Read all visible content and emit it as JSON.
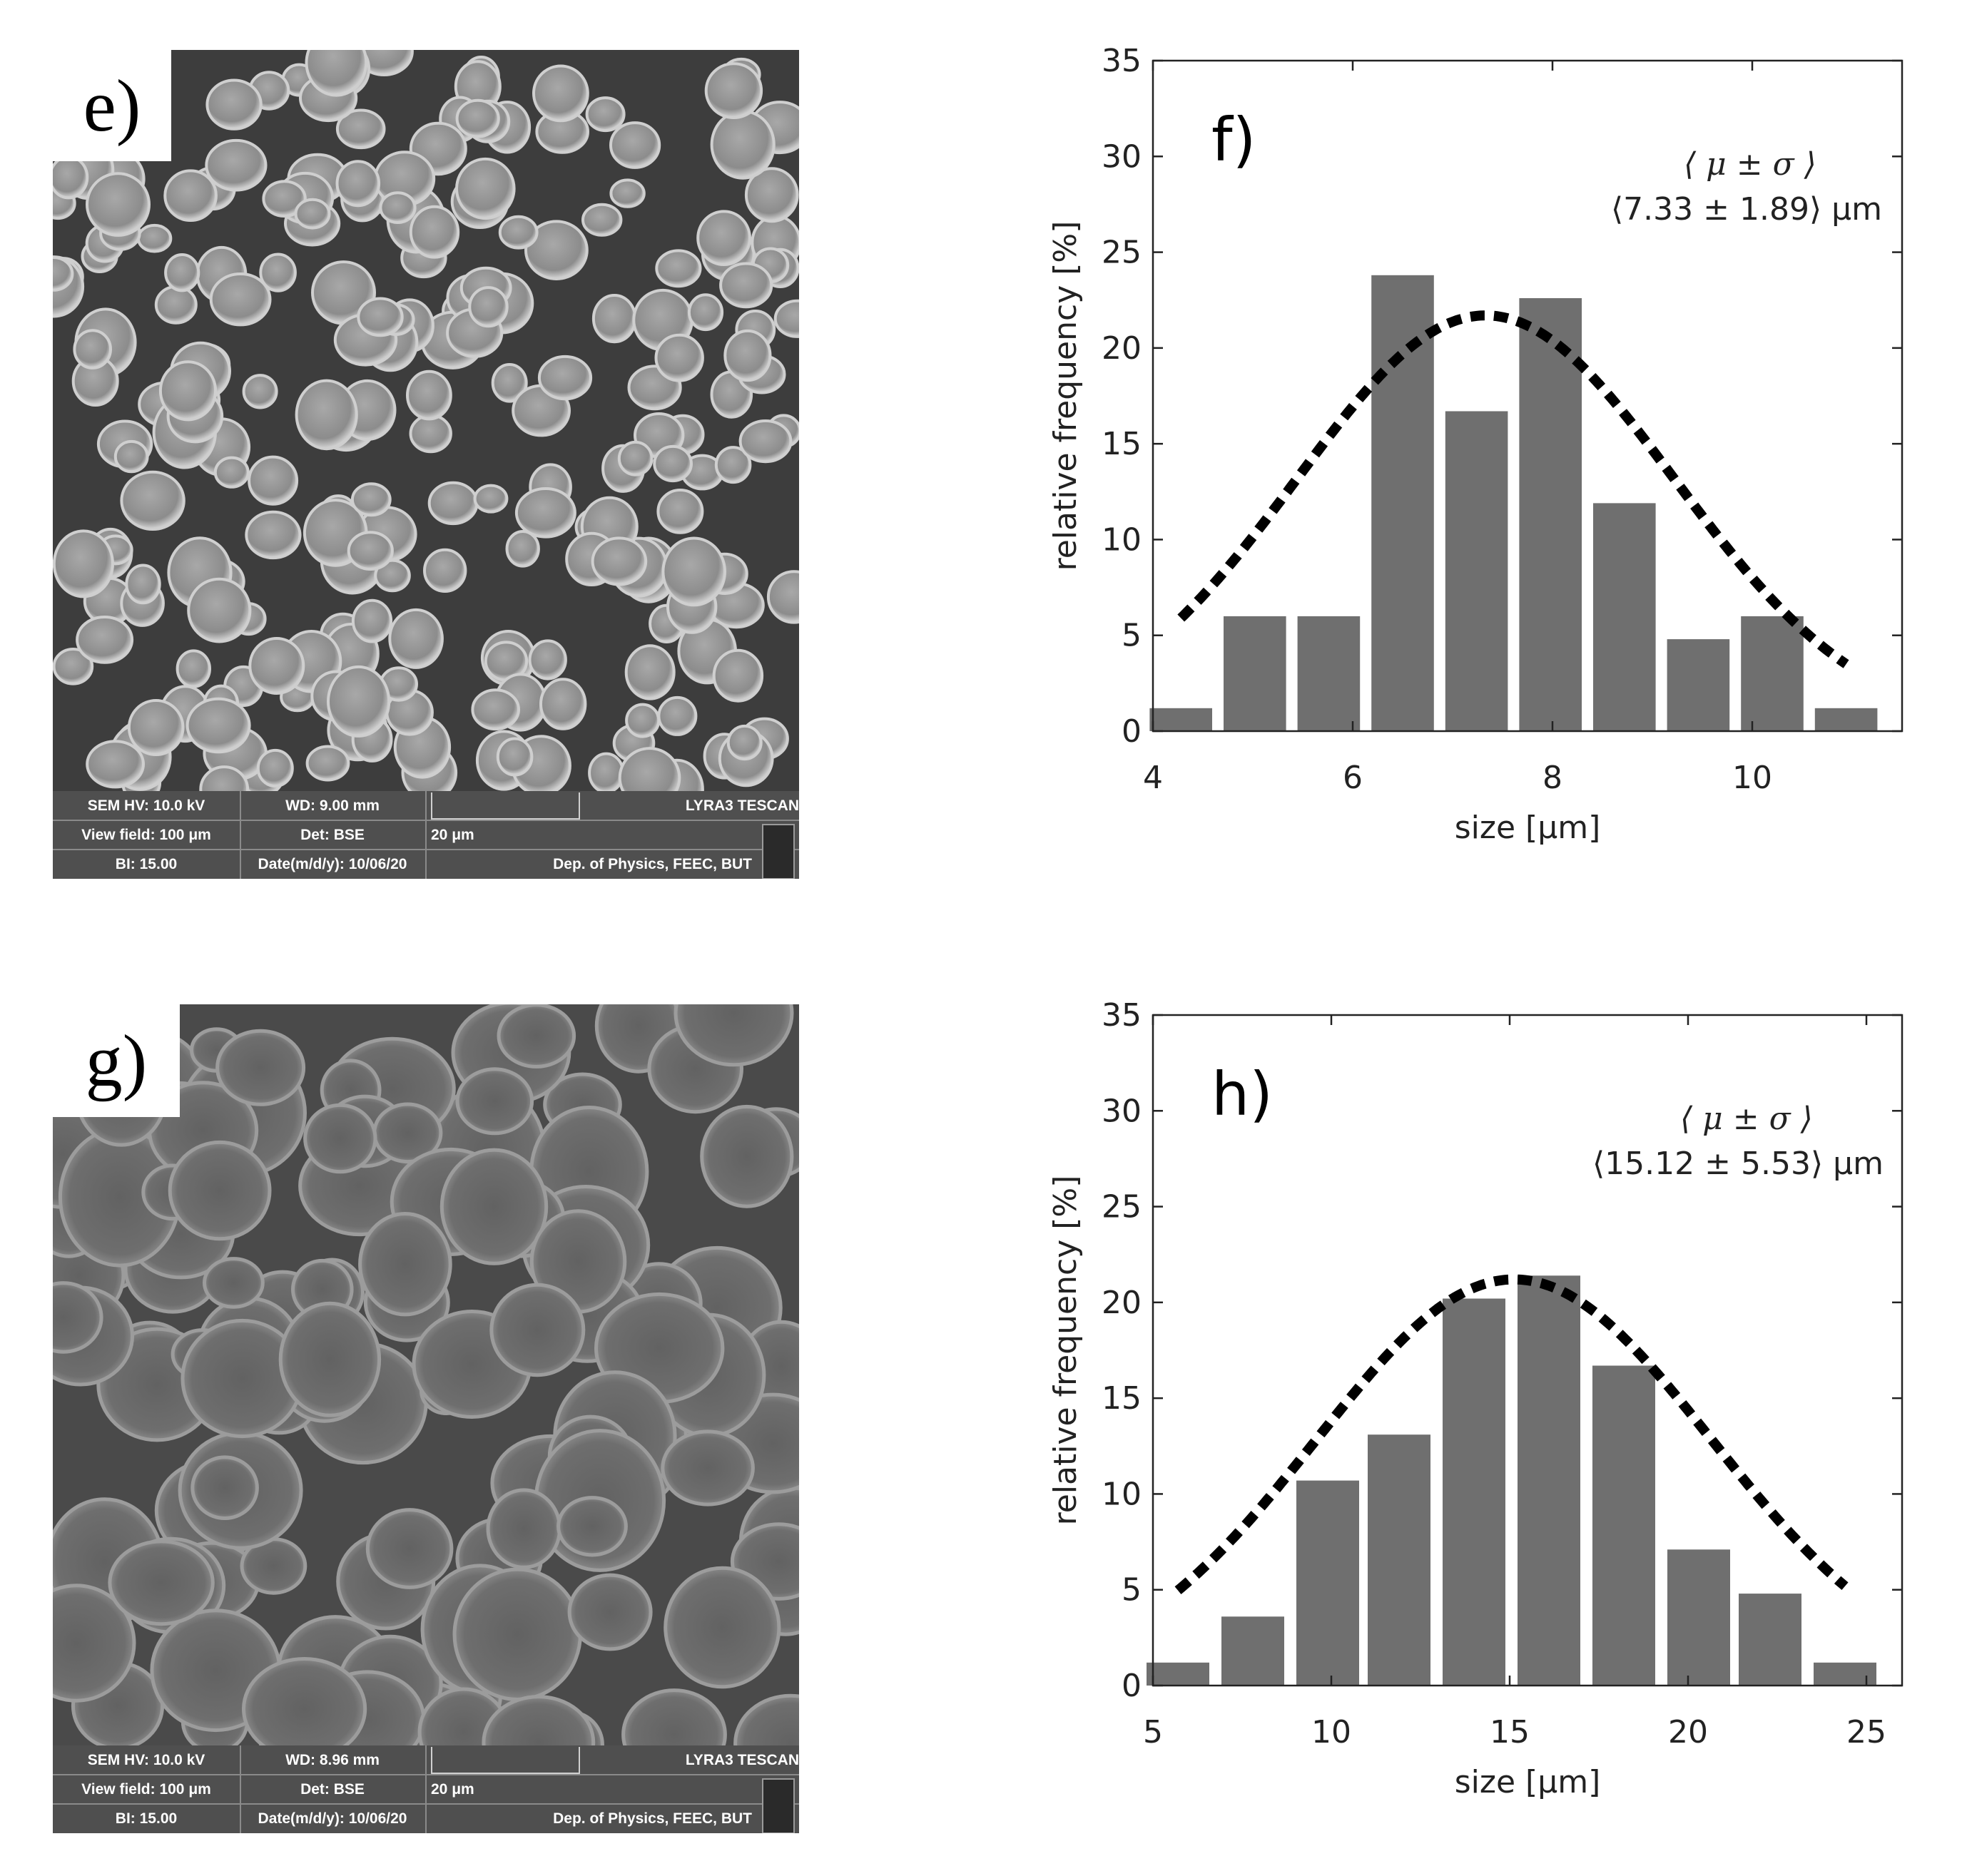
{
  "panels": {
    "e": {
      "label": "e)",
      "scale_label": "20 μm",
      "info": {
        "sem_hv": "SEM HV: 10.0 kV",
        "wd": "WD: 9.00 mm",
        "maker": "LYRA3 TESCAN",
        "view_field": "View field: 100 μm",
        "det": "Det: BSE",
        "bi": "BI: 15.00",
        "date": "Date(m/d/y): 10/06/20",
        "dept": "Dep. of Physics, FEEC, BUT"
      }
    },
    "g": {
      "label": "g)",
      "scale_label": "20 μm",
      "info": {
        "sem_hv": "SEM HV: 10.0 kV",
        "wd": "WD: 8.96 mm",
        "maker": "LYRA3 TESCAN",
        "view_field": "View field: 100 μm",
        "det": "Det: BSE",
        "bi": "BI: 15.00",
        "date": "Date(m/d/y): 10/06/20",
        "dept": "Dep. of Physics, FEEC, BUT"
      }
    }
  },
  "colors": {
    "bar": "#6f6f6f",
    "fit": "#000000",
    "axis": "#222222"
  },
  "chart_data": [
    {
      "id": "f",
      "type": "bar",
      "panel_label": "f)",
      "xlabel": "size [μm]",
      "ylabel": "relative frequency [%]",
      "xlim": [
        4,
        11.5
      ],
      "ylim": [
        0,
        35
      ],
      "xticks": [
        4,
        6,
        8,
        10
      ],
      "yticks": [
        0,
        5,
        10,
        15,
        20,
        25,
        30,
        35
      ],
      "bin_width": 0.74,
      "bins": [
        {
          "x": 4.28,
          "y": 1.2
        },
        {
          "x": 5.02,
          "y": 6.0
        },
        {
          "x": 5.76,
          "y": 6.0
        },
        {
          "x": 6.5,
          "y": 23.8
        },
        {
          "x": 7.24,
          "y": 16.7
        },
        {
          "x": 7.98,
          "y": 22.6
        },
        {
          "x": 8.72,
          "y": 11.9
        },
        {
          "x": 9.46,
          "y": 4.8
        },
        {
          "x": 10.2,
          "y": 6.0
        },
        {
          "x": 10.94,
          "y": 1.2
        }
      ],
      "fit": {
        "mean": 7.33,
        "sd": 1.89,
        "peak": 21.7,
        "x_range": [
          4.28,
          10.94
        ]
      },
      "annotation": {
        "line1": "⟨ μ ± σ ⟩",
        "line2": "⟨7.33 ± 1.89⟩ μm"
      },
      "grid": false
    },
    {
      "id": "h",
      "type": "bar",
      "panel_label": "h)",
      "xlabel": "size [μm]",
      "ylabel": "relative frequency [%]",
      "xlim": [
        5,
        26
      ],
      "ylim": [
        0,
        35
      ],
      "xticks": [
        5,
        10,
        15,
        20,
        25
      ],
      "yticks": [
        0,
        5,
        10,
        15,
        20,
        25,
        30,
        35
      ],
      "bin_width": 2.08,
      "bins": [
        {
          "x": 5.7,
          "y": 1.2
        },
        {
          "x": 7.8,
          "y": 3.6
        },
        {
          "x": 9.9,
          "y": 10.7
        },
        {
          "x": 11.9,
          "y": 13.1
        },
        {
          "x": 14.0,
          "y": 20.2
        },
        {
          "x": 16.1,
          "y": 21.4
        },
        {
          "x": 18.2,
          "y": 16.7
        },
        {
          "x": 20.3,
          "y": 7.1
        },
        {
          "x": 22.3,
          "y": 4.8
        },
        {
          "x": 24.4,
          "y": 1.2
        }
      ],
      "fit": {
        "mean": 15.12,
        "sd": 5.53,
        "peak": 21.2,
        "x_range": [
          5.7,
          24.4
        ]
      },
      "annotation": {
        "line1": "⟨ μ ± σ ⟩",
        "line2": "⟨15.12 ± 5.53⟩ μm"
      },
      "grid": false
    }
  ]
}
